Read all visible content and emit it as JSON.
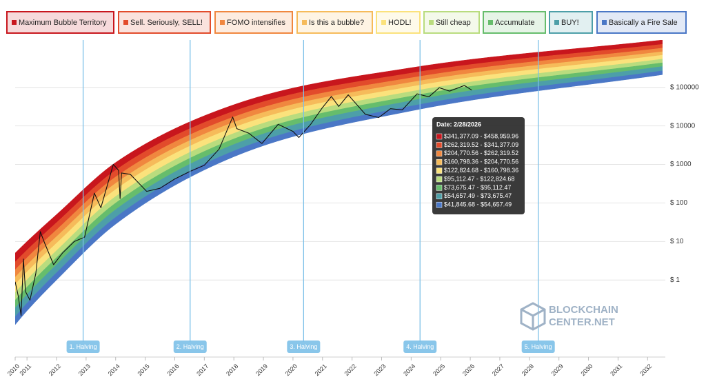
{
  "chart_data": {
    "type": "rainbow",
    "legend_position": "top",
    "ylog": true,
    "grid": true,
    "xlim": [
      2010.6,
      2032.6
    ],
    "ylim": [
      0.01,
      1700000
    ],
    "xticks": [
      {
        "value": 2010.6,
        "label": "2010"
      },
      2011,
      2012,
      2013,
      2014,
      2015,
      2016,
      2017,
      2018,
      2019,
      2020,
      2021,
      2022,
      2023,
      2024,
      2025,
      2026,
      2027,
      2028,
      2029,
      2030,
      2031,
      2032
    ],
    "yticks": [
      {
        "value": 1,
        "label": "$ 1"
      },
      {
        "value": 10,
        "label": "$ 10"
      },
      {
        "value": 100,
        "label": "$ 100"
      },
      {
        "value": 1000,
        "label": "$ 1000"
      },
      {
        "value": 10000,
        "label": "$ 10000"
      },
      {
        "value": 100000,
        "label": "$ 100000"
      }
    ],
    "band_x": [
      2010.6,
      2011,
      2012,
      2014,
      2018,
      2024,
      2032.5
    ],
    "band_base": [
      0.06918,
      0.1585,
      1,
      28.18,
      1585,
      24550,
      213800
    ],
    "series": [
      {
        "name": "Maximum Bubble Territory",
        "color": "#c8161d",
        "values": [
          5.012,
          10,
          50.12,
          1122,
          35480,
          323600,
          1698000
        ]
      },
      {
        "name": "Sell. Seriously, SELL!",
        "color": "#e24b2b",
        "values": [
          2.953,
          5.993,
          30.92,
          712,
          24170,
          235300,
          1315000
        ]
      },
      {
        "name": "FOMO intensifies",
        "color": "#f0873f",
        "values": [
          1.844,
          3.799,
          20.1,
          474.8,
          17170,
          177200,
          1047000
        ]
      },
      {
        "name": "Is this a bubble?",
        "color": "#f6bb5a",
        "values": [
          1.184,
          2.474,
          13.4,
          324.2,
          12450,
          135700,
          844900
        ]
      },
      {
        "name": "HODL!",
        "color": "#fbe27c",
        "values": [
          0.7683,
          1.629,
          9.029,
          223.6,
          9095,
          104600,
          685200
        ]
      },
      {
        "name": "Still cheap",
        "color": "#b9dc7e",
        "values": [
          0.4746,
          1.022,
          5.812,
          147.7,
          6412,
          78280,
          542800
        ]
      },
      {
        "name": "Accumulate",
        "color": "#66bd6c",
        "values": [
          0.3003,
          0.6561,
          3.826,
          99.65,
          4601,
          59410,
          435000
        ]
      },
      {
        "name": "BUY!",
        "color": "#4d9fa8",
        "values": [
          0.1901,
          0.4217,
          2.52,
          67.26,
          3302,
          45120,
          348700
        ]
      },
      {
        "name": "Basically a Fire Sale",
        "color": "#4a77c6",
        "values": [
          0.1115,
          0.2517,
          1.547,
          42.5,
          2242,
          32720,
          269400
        ]
      }
    ],
    "price": {
      "color": "#111111",
      "x": [
        2010.6,
        2010.7,
        2010.8,
        2010.88,
        2010.95,
        2011.1,
        2011.3,
        2011.45,
        2011.6,
        2011.9,
        2012.2,
        2012.6,
        2012.95,
        2013.28,
        2013.5,
        2013.92,
        2014.1,
        2014.15,
        2014.2,
        2014.5,
        2015.05,
        2015.5,
        2016.0,
        2016.5,
        2017.0,
        2017.5,
        2017.96,
        2018.1,
        2018.5,
        2018.95,
        2019.5,
        2020.0,
        2020.2,
        2020.6,
        2021.0,
        2021.3,
        2021.55,
        2021.87,
        2022.45,
        2022.9,
        2023.3,
        2023.7,
        2024.2,
        2024.6,
        2024.95,
        2025.3,
        2025.8,
        2026.05
      ],
      "values": [
        0.9,
        0.4,
        0.12,
        3.5,
        0.5,
        0.3,
        1.5,
        18,
        9,
        2.5,
        5,
        10,
        13,
        180,
        75,
        1000,
        700,
        130,
        600,
        550,
        200,
        240,
        420,
        650,
        950,
        2500,
        17000,
        8500,
        6500,
        3500,
        11000,
        7200,
        5000,
        11000,
        30000,
        58000,
        32000,
        64000,
        20000,
        16500,
        28000,
        26000,
        68000,
        57000,
        98000,
        80000,
        112000,
        85000
      ]
    },
    "halvings": {
      "color": "#7cc0e8",
      "x": [
        2012.9,
        2016.52,
        2020.36,
        2024.3,
        2028.3
      ],
      "labels": [
        "1. Halving",
        "2. Halving",
        "3. Halving",
        "4. Halving",
        "5. Halving"
      ]
    },
    "tooltip": {
      "title": "Date: 2/28/2026",
      "rows": [
        "$341,377.09 - $458,959.96",
        "$262,319.52 - $341,377.09",
        "$204,770.56 - $262,319.52",
        "$160,798.36 - $204,770.56",
        "$122,824.68 - $160,798.36",
        "$95,112.47 - $122,824.68",
        "$73,675.47 - $95,112.47",
        "$54,657.49 - $73,675.47",
        "$41,845.68 - $54,657.49"
      ]
    },
    "watermark": [
      "BLOCKCHAIN",
      "CENTER.NET"
    ]
  }
}
